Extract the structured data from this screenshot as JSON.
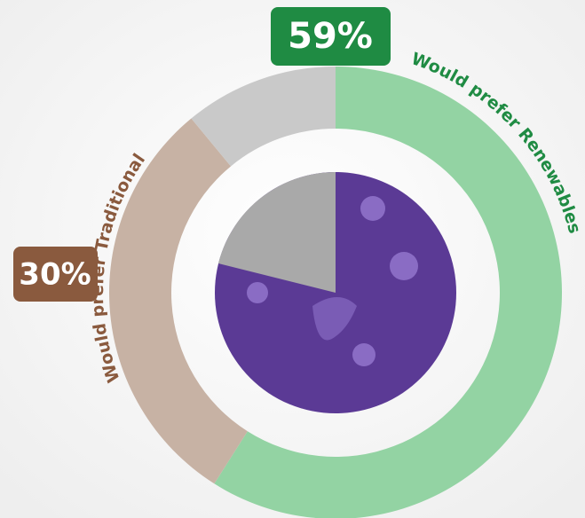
{
  "chart_data": {
    "type": "donut",
    "categories": [
      "Would prefer Renewables",
      "Would prefer Traditional",
      null
    ],
    "values": [
      59,
      30,
      11
    ],
    "value_labels": [
      "59%",
      "30%",
      null
    ],
    "colors": [
      "#93d3a3",
      "#c7b2a4",
      "#c9c9c9"
    ],
    "label_colors": [
      "#1f8b43",
      "#8a5a3e",
      null
    ]
  }
}
